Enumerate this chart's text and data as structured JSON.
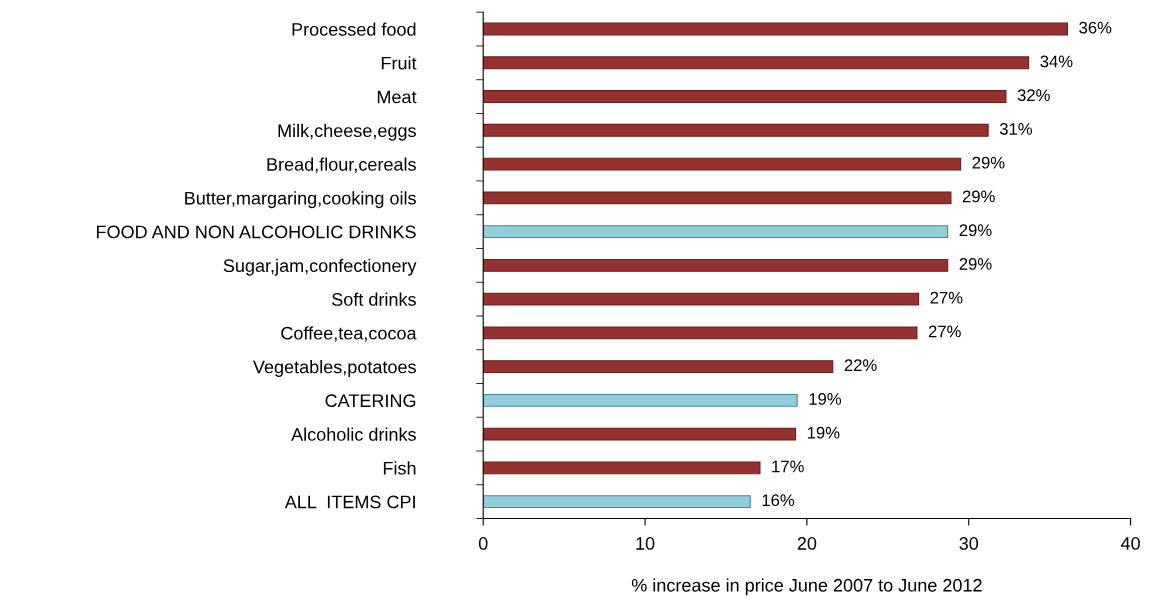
{
  "chart_data": {
    "type": "bar",
    "orientation": "horizontal",
    "xlabel": "% increase in price June 2007 to June 2012",
    "categories": [
      "Processed food",
      "Fruit",
      "Meat",
      "Milk,cheese,eggs",
      "Bread,flour,cereals",
      "Butter,margaring,cooking oils",
      "FOOD AND NON ALCOHOLIC DRINKS",
      "Sugar,jam,confectionery",
      "Soft drinks",
      "Coffee,tea,cocoa",
      "Vegetables,potatoes",
      "CATERING",
      "Alcoholic drinks",
      "Fish",
      "ALL  ITEMS CPI"
    ],
    "values": [
      36.1,
      33.7,
      32.3,
      31.2,
      29.5,
      28.9,
      28.7,
      28.7,
      26.9,
      26.8,
      21.6,
      19.4,
      19.3,
      17.1,
      16.5
    ],
    "colors": [
      "#943230",
      "#943230",
      "#943230",
      "#943230",
      "#943230",
      "#943230",
      "#92cddc",
      "#943230",
      "#943230",
      "#943230",
      "#943230",
      "#92cddc",
      "#943230",
      "#943230",
      "#92cddc"
    ],
    "value_labels": [
      "36%",
      "34%",
      "32%",
      "31%",
      "29%",
      "29%",
      "29%",
      "29%",
      "27%",
      "27%",
      "22%",
      "19%",
      "19%",
      "17%",
      "16%"
    ],
    "xlim": [
      0,
      40
    ],
    "xticks": [
      0,
      10,
      20,
      30,
      40
    ],
    "grid": false,
    "legend": false
  }
}
